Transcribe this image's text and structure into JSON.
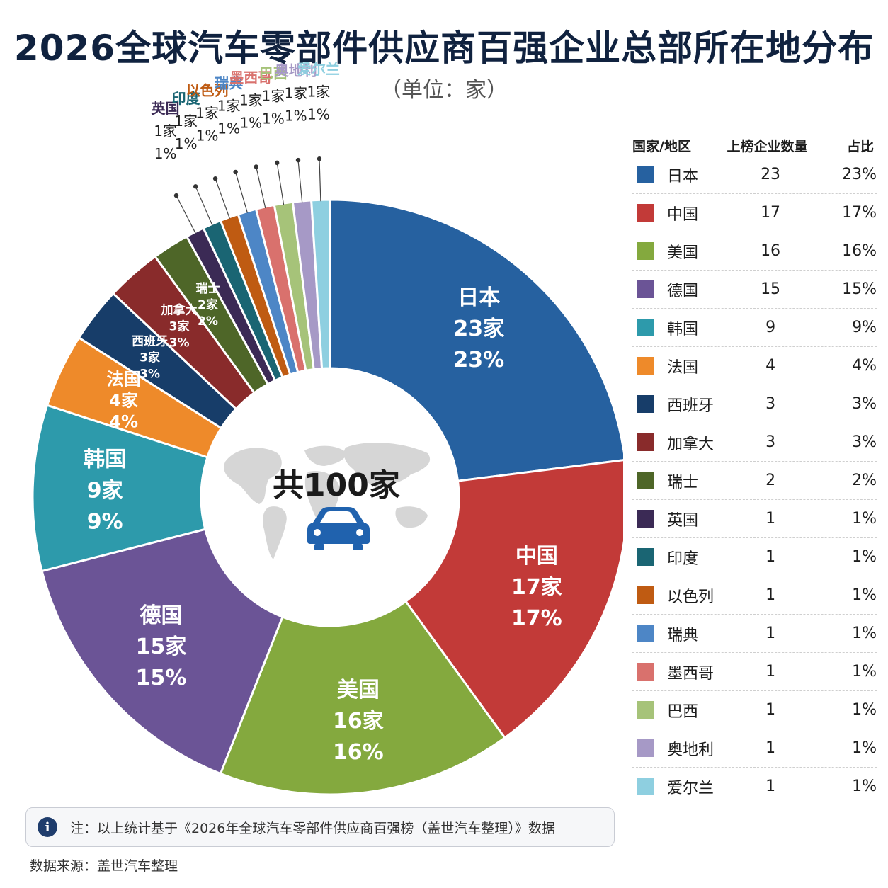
{
  "title": "2026全球汽车零部件供应商百强企业总部所在地分布",
  "subtitle": "（单位：家）",
  "center_label": "共100家",
  "legend_headers": {
    "region": "国家/地区",
    "count": "上榜企业数量",
    "share": "占比"
  },
  "note": "注：以上统计基于《2026年全球汽车零部件供应商百强榜（盖世汽车整理）》数据",
  "source": "数据来源：盖世汽车整理",
  "chart_data": {
    "type": "pie",
    "donut": true,
    "total": 100,
    "unit": "家",
    "slices": [
      {
        "name": "日本",
        "count": 23,
        "share": "23%",
        "color": "#2661a0"
      },
      {
        "name": "中国",
        "count": 17,
        "share": "17%",
        "color": "#c23a38"
      },
      {
        "name": "美国",
        "count": 16,
        "share": "16%",
        "color": "#84a93e"
      },
      {
        "name": "德国",
        "count": 15,
        "share": "15%",
        "color": "#6b5496"
      },
      {
        "name": "韩国",
        "count": 9,
        "share": "9%",
        "color": "#2d9aab"
      },
      {
        "name": "法国",
        "count": 4,
        "share": "4%",
        "color": "#ee8a2a"
      },
      {
        "name": "西班牙",
        "count": 3,
        "share": "3%",
        "color": "#173d69"
      },
      {
        "name": "加拿大",
        "count": 3,
        "share": "3%",
        "color": "#892b2b"
      },
      {
        "name": "瑞士",
        "count": 2,
        "share": "2%",
        "color": "#4e6628"
      },
      {
        "name": "英国",
        "count": 1,
        "share": "1%",
        "color": "#3b2a55"
      },
      {
        "name": "印度",
        "count": 1,
        "share": "1%",
        "color": "#1a6573"
      },
      {
        "name": "以色列",
        "count": 1,
        "share": "1%",
        "color": "#bf5b12"
      },
      {
        "name": "瑞典",
        "count": 1,
        "share": "1%",
        "color": "#4d86c6"
      },
      {
        "name": "墨西哥",
        "count": 1,
        "share": "1%",
        "color": "#d9716d"
      },
      {
        "name": "巴西",
        "count": 1,
        "share": "1%",
        "color": "#a6c379"
      },
      {
        "name": "奥地利",
        "count": 1,
        "share": "1%",
        "color": "#a699c6"
      },
      {
        "name": "爱尔兰",
        "count": 1,
        "share": "1%",
        "color": "#8ecfe0"
      }
    ]
  }
}
